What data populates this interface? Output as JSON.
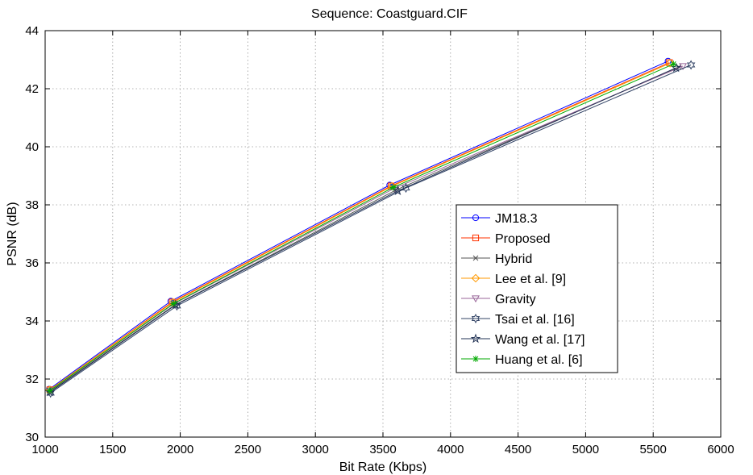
{
  "chart_data": {
    "type": "line",
    "title": "Sequence: Coastguard.CIF",
    "xlabel": "Bit Rate (Kbps)",
    "ylabel": "PSNR (dB)",
    "xlim": [
      1000,
      6000
    ],
    "ylim": [
      30,
      44
    ],
    "xticks": [
      1000,
      1500,
      2000,
      2500,
      3000,
      3500,
      4000,
      4500,
      5000,
      5500,
      6000
    ],
    "yticks": [
      30,
      32,
      34,
      36,
      38,
      40,
      42,
      44
    ],
    "grid": true,
    "legend_position": "center-right",
    "series": [
      {
        "name": "JM18.3",
        "color": "#0000ff",
        "marker": "circle",
        "points": [
          [
            1030,
            31.65
          ],
          [
            1930,
            34.68
          ],
          [
            3550,
            38.68
          ],
          [
            5610,
            42.95
          ]
        ]
      },
      {
        "name": "Proposed",
        "color": "#ff3300",
        "marker": "square",
        "points": [
          [
            1035,
            31.63
          ],
          [
            1940,
            34.65
          ],
          [
            3560,
            38.65
          ],
          [
            5620,
            42.9
          ]
        ]
      },
      {
        "name": "Hybrid",
        "color": "#555555",
        "marker": "x",
        "points": [
          [
            1038,
            31.58
          ],
          [
            1960,
            34.55
          ],
          [
            3600,
            38.52
          ],
          [
            5690,
            42.75
          ]
        ]
      },
      {
        "name": "Lee et al. [9]",
        "color": "#ff9900",
        "marker": "diamond",
        "points": [
          [
            1033,
            31.62
          ],
          [
            1945,
            34.64
          ],
          [
            3565,
            38.64
          ],
          [
            5625,
            42.88
          ]
        ]
      },
      {
        "name": "Gravity",
        "color": "#996699",
        "marker": "triangle-down",
        "points": [
          [
            1036,
            31.6
          ],
          [
            1955,
            34.6
          ],
          [
            3590,
            38.58
          ],
          [
            5720,
            42.78
          ]
        ]
      },
      {
        "name": "Tsai et al. [16]",
        "color": "#334466",
        "marker": "hexagram",
        "points": [
          [
            1040,
            31.52
          ],
          [
            1975,
            34.52
          ],
          [
            3670,
            38.58
          ],
          [
            5780,
            42.82
          ]
        ]
      },
      {
        "name": "Wang et al. [17]",
        "color": "#223355",
        "marker": "pentagram",
        "points": [
          [
            1037,
            31.55
          ],
          [
            1965,
            34.55
          ],
          [
            3610,
            38.48
          ],
          [
            5670,
            42.72
          ]
        ]
      },
      {
        "name": "Huang et al. [6]",
        "color": "#00aa00",
        "marker": "asterisk",
        "points": [
          [
            1034,
            31.6
          ],
          [
            1950,
            34.6
          ],
          [
            3575,
            38.6
          ],
          [
            5650,
            42.85
          ]
        ]
      }
    ]
  }
}
